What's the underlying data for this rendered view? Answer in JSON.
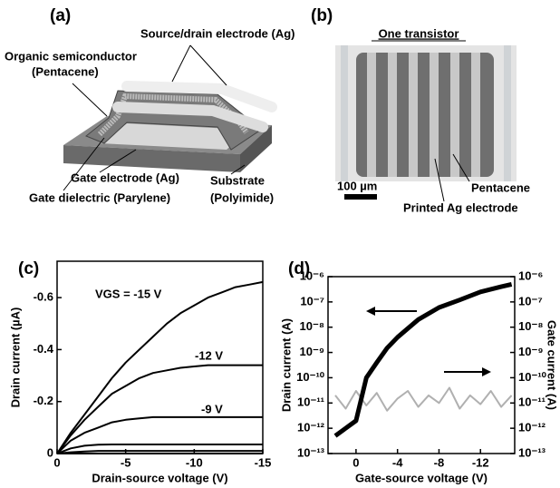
{
  "panels": {
    "a": {
      "label": "(a)",
      "source_drain": "Source/drain electrode (Ag)",
      "semiconductor": "Organic semiconductor",
      "semiconductor_material": "(Pentacene)",
      "gate": "Gate electrode (Ag)",
      "dielectric": "Gate dielectric (Parylene)",
      "substrate": "Substrate",
      "substrate_material": "(Polyimide)"
    },
    "b": {
      "label": "(b)",
      "title": "One transistor",
      "scale": "100 µm",
      "pentacene": "Pentacene",
      "electrode": "Printed Ag electrode"
    }
  },
  "chart_data": [
    {
      "type": "line",
      "title": "(c)",
      "x_label": "Drain-source voltage (V)",
      "y_label": "Drain current (µA)",
      "x": [
        0,
        -1,
        -2,
        -3,
        -4,
        -5,
        -6,
        -7,
        -8,
        -9,
        -10,
        -11,
        -12,
        -13,
        -14,
        -15
      ],
      "xlim": [
        0,
        -15
      ],
      "xticks": [
        0,
        -5,
        -10,
        -15
      ],
      "ylim": [
        0,
        -0.74
      ],
      "yticks": [
        0,
        -0.2,
        -0.4,
        -0.6
      ],
      "series": [
        {
          "name": "VGS = -15 V",
          "color": "#000000",
          "values": [
            0,
            -0.08,
            -0.15,
            -0.22,
            -0.29,
            -0.35,
            -0.4,
            -0.45,
            -0.5,
            -0.54,
            -0.57,
            -0.6,
            -0.62,
            -0.64,
            -0.65,
            -0.66
          ]
        },
        {
          "name": "-12 V",
          "color": "#000000",
          "values": [
            0,
            -0.07,
            -0.13,
            -0.18,
            -0.23,
            -0.26,
            -0.29,
            -0.31,
            -0.32,
            -0.33,
            -0.335,
            -0.34,
            -0.34,
            -0.34,
            -0.34,
            -0.34
          ]
        },
        {
          "name": "-9 V",
          "color": "#000000",
          "values": [
            0,
            -0.05,
            -0.08,
            -0.1,
            -0.12,
            -0.13,
            -0.135,
            -0.14,
            -0.14,
            -0.14,
            -0.14,
            -0.14,
            -0.14,
            -0.14,
            -0.14,
            -0.14
          ]
        },
        {
          "color": "#000000",
          "values": [
            0,
            -0.02,
            -0.03,
            -0.034,
            -0.035,
            -0.035,
            -0.035,
            -0.035,
            -0.035,
            -0.035,
            -0.035,
            -0.035,
            -0.035,
            -0.035,
            -0.035,
            -0.035
          ]
        },
        {
          "color": "#000000",
          "values": [
            0,
            -0.005,
            -0.008,
            -0.01,
            -0.01,
            -0.01,
            -0.01,
            -0.01,
            -0.01,
            -0.01,
            -0.01,
            -0.01,
            -0.01,
            -0.01,
            -0.01,
            -0.01
          ]
        },
        {
          "color": "#000000",
          "values": [
            0,
            0,
            0,
            0,
            0,
            0,
            0,
            0,
            0,
            0,
            0,
            0,
            0,
            0,
            0,
            0
          ]
        }
      ]
    },
    {
      "type": "line",
      "title": "(d)",
      "x_label": "Gate-source voltage (V)",
      "y_label": "Drain current (A)",
      "y2_label": "Gate current (A)",
      "xlim": [
        2.7,
        -15.3
      ],
      "xticks": [
        0,
        -4,
        -8,
        -12
      ],
      "yscale": "log",
      "ylim": [
        1e-13,
        1e-06
      ],
      "yticks": [
        {
          "value": 1e-13,
          "label": "10⁻¹³"
        },
        {
          "value": 1e-12,
          "label": "10⁻¹²"
        },
        {
          "value": 1e-11,
          "label": "10⁻¹¹"
        },
        {
          "value": 1e-10,
          "label": "10⁻¹⁰"
        },
        {
          "value": 1e-09,
          "label": "10⁻⁹"
        },
        {
          "value": 1e-08,
          "label": "10⁻⁸"
        },
        {
          "value": 1e-07,
          "label": "10⁻⁷"
        },
        {
          "value": 1e-06,
          "label": "10⁻⁶"
        }
      ],
      "y2scale": "log",
      "y2lim": [
        1e-13,
        1e-06
      ],
      "y2ticks": [
        {
          "value": 1e-13,
          "label": "10⁻¹³"
        },
        {
          "value": 1e-12,
          "label": "10⁻¹²"
        },
        {
          "value": 1e-11,
          "label": "10⁻¹¹"
        },
        {
          "value": 1e-10,
          "label": "10⁻¹⁰"
        },
        {
          "value": 1e-09,
          "label": "10⁻⁹"
        },
        {
          "value": 1e-08,
          "label": "10⁻⁸"
        },
        {
          "value": 1e-07,
          "label": "10⁻⁷"
        },
        {
          "value": 1e-06,
          "label": "10⁻⁶"
        }
      ],
      "series": [
        {
          "color": "#b0b0b0",
          "axis": "y2",
          "x": [
            2,
            1,
            0,
            -1,
            -2,
            -3,
            -4,
            -5,
            -6,
            -7,
            -8,
            -9,
            -10,
            -11,
            -12,
            -13,
            -14,
            -15
          ],
          "values": [
            2e-11,
            6e-12,
            3e-11,
            8e-12,
            2.5e-11,
            5e-12,
            1.5e-11,
            3e-11,
            7e-12,
            2e-11,
            1e-11,
            4e-11,
            6e-12,
            2e-11,
            9e-12,
            3e-11,
            7e-12,
            2e-11
          ]
        },
        {
          "color": "#000000",
          "x": [
            2,
            1,
            0,
            -1,
            -2,
            -3,
            -4,
            -6,
            -8,
            -10,
            -12,
            -14,
            -15
          ],
          "values": [
            5e-13,
            1e-12,
            2e-12,
            1e-10,
            4e-10,
            1.5e-09,
            4e-09,
            2e-08,
            6e-08,
            1.2e-07,
            2.5e-07,
            4e-07,
            5e-07
          ]
        }
      ]
    }
  ]
}
